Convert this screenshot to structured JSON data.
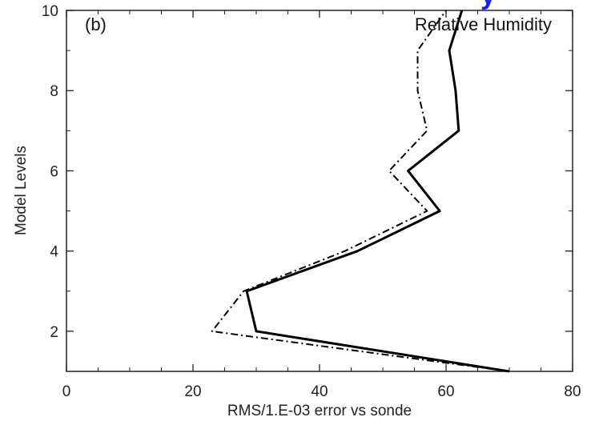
{
  "chart_data": {
    "type": "line",
    "title": "",
    "panel_label": "(b)",
    "annotation": "Relative Humidity",
    "xlabel": "RMS/1.E-03 error vs sonde",
    "ylabel": "Model Levels",
    "xlim": [
      0,
      80
    ],
    "ylim": [
      1,
      10
    ],
    "x_ticks": [
      0,
      20,
      40,
      60,
      80
    ],
    "y_ticks": [
      2,
      4,
      6,
      8,
      10
    ],
    "grid": false,
    "series": [
      {
        "style": "solid",
        "color": "#000000",
        "points": [
          {
            "x": 70,
            "y": 1
          },
          {
            "x": 30,
            "y": 2
          },
          {
            "x": 28.5,
            "y": 3
          },
          {
            "x": 46,
            "y": 4
          },
          {
            "x": 59,
            "y": 5
          },
          {
            "x": 54,
            "y": 6
          },
          {
            "x": 62,
            "y": 7
          },
          {
            "x": 61.5,
            "y": 8
          },
          {
            "x": 60.5,
            "y": 9
          },
          {
            "x": 62.5,
            "y": 10
          }
        ]
      },
      {
        "style": "dash-dot",
        "color": "#000000",
        "points": [
          {
            "x": 70,
            "y": 1
          },
          {
            "x": 23,
            "y": 2
          },
          {
            "x": 28,
            "y": 3
          },
          {
            "x": 44,
            "y": 4
          },
          {
            "x": 57,
            "y": 5
          },
          {
            "x": 51,
            "y": 6
          },
          {
            "x": 57,
            "y": 7
          },
          {
            "x": 55.5,
            "y": 8
          },
          {
            "x": 55.5,
            "y": 9
          },
          {
            "x": 60,
            "y": 10
          }
        ]
      }
    ]
  }
}
